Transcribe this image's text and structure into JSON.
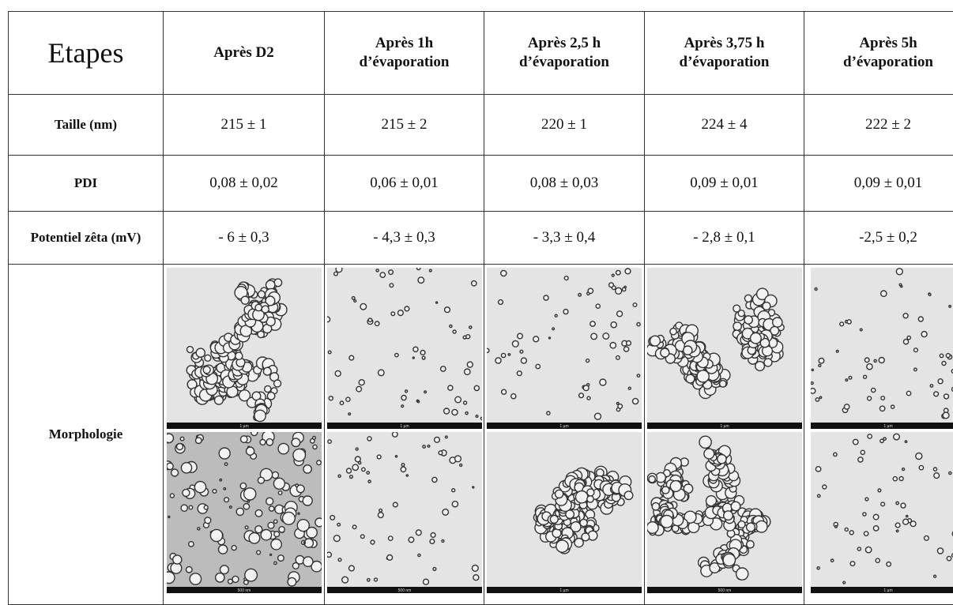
{
  "header": [
    [
      "Etapes"
    ],
    [
      "Après D2"
    ],
    [
      "Après 1h",
      "d’évaporation"
    ],
    [
      "Après 2,5 h",
      "d’évaporation"
    ],
    [
      "Après 3,75 h",
      "d’évaporation"
    ],
    [
      "Après 5h",
      "d’évaporation"
    ]
  ],
  "rows": [
    {
      "label": "Taille (nm)",
      "cells": [
        "215 ± 1",
        "215 ± 2",
        "220 ± 1",
        "224 ± 4",
        "222 ± 2"
      ]
    },
    {
      "label": "PDI",
      "cells": [
        "0,08 ± 0,02",
        "0,06 ± 0,01",
        "0,08 ± 0,03",
        "0,09 ± 0,01",
        "0,09 ± 0,01"
      ]
    },
    {
      "label": "Potentiel zêta (mV)",
      "cells": [
        "- 6 ± 0,3",
        "- 4,3 ± 0,3",
        "- 3,3 ± 0,4",
        "- 2,8 ± 0,1",
        "-2,5 ± 0,2"
      ]
    }
  ],
  "morphology": {
    "label": "Morphologie",
    "scale_labels": [
      [
        "1 µm",
        "500 nm"
      ],
      [
        "1 µm",
        "500 nm"
      ],
      [
        "1 µm",
        "1 µm"
      ],
      [
        "1 µm",
        "500 nm"
      ],
      [
        "1 µm",
        "1 µm"
      ]
    ]
  }
}
